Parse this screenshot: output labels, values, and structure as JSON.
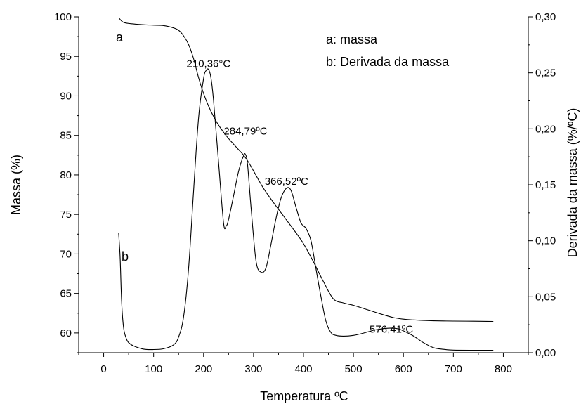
{
  "chart_data": {
    "type": "line",
    "xlabel": "Temperatura ºC",
    "ylabel_left": "Massa (%)",
    "ylabel_right": "Derivada da massa (%/ºC)",
    "xlim": [
      -50,
      850
    ],
    "ylim_left": [
      57.5,
      100
    ],
    "ylim_right": [
      0,
      0.3
    ],
    "x_ticks": [
      "0",
      "100",
      "200",
      "300",
      "400",
      "500",
      "600",
      "700",
      "800"
    ],
    "y_left_ticks": [
      "60",
      "65",
      "70",
      "75",
      "80",
      "85",
      "90",
      "95",
      "100"
    ],
    "y_right_ticks": [
      "0,00",
      "0,05",
      "0,10",
      "0,15",
      "0,20",
      "0,25",
      "0,30"
    ],
    "legend": [
      "a: massa",
      "b: Derivada da massa"
    ],
    "curve_labels": {
      "a": "a",
      "b": "b"
    },
    "annotations": [
      {
        "text": "210,36°C",
        "x": 210,
        "y_right": 0.255
      },
      {
        "text": "284,79ºC",
        "x": 284,
        "y_right": 0.195
      },
      {
        "text": "366,52ºC",
        "x": 366,
        "y_right": 0.15
      },
      {
        "text": "576,41ºC",
        "x": 576,
        "y_right": 0.018
      }
    ],
    "series": [
      {
        "name": "a: massa",
        "axis": "left",
        "x": [
          30,
          40,
          60,
          80,
          100,
          120,
          140,
          150,
          160,
          170,
          180,
          190,
          200,
          210,
          220,
          230,
          240,
          250,
          260,
          270,
          280,
          290,
          300,
          320,
          340,
          360,
          380,
          400,
          420,
          440,
          460,
          480,
          500,
          520,
          540,
          560,
          580,
          600,
          620,
          640,
          660,
          680,
          700,
          740,
          780
        ],
        "y": [
          99.9,
          99.3,
          99.1,
          99.0,
          98.95,
          98.9,
          98.6,
          98.3,
          97.6,
          96.5,
          94.7,
          92.3,
          90.3,
          88.7,
          87.4,
          86.3,
          85.4,
          84.6,
          83.9,
          83.2,
          82.5,
          81.6,
          80.5,
          78.3,
          76.5,
          74.8,
          73.1,
          71.3,
          69.0,
          66.5,
          64.3,
          63.8,
          63.5,
          63.1,
          62.7,
          62.3,
          61.95,
          61.75,
          61.65,
          61.58,
          61.54,
          61.52,
          61.5,
          61.48,
          61.45
        ]
      },
      {
        "name": "b: Derivada da massa",
        "axis": "right",
        "x": [
          30,
          33,
          36,
          40,
          45,
          50,
          60,
          80,
          100,
          120,
          140,
          150,
          160,
          170,
          180,
          190,
          200,
          205,
          210,
          215,
          220,
          230,
          240,
          245,
          250,
          260,
          270,
          280,
          284,
          288,
          295,
          305,
          315,
          325,
          335,
          345,
          355,
          366,
          375,
          385,
          395,
          405,
          415,
          425,
          435,
          445,
          455,
          465,
          480,
          500,
          520,
          540,
          560,
          576,
          590,
          600,
          620,
          640,
          660,
          680,
          700,
          740,
          780
        ],
        "y": [
          0.107,
          0.085,
          0.045,
          0.022,
          0.013,
          0.009,
          0.006,
          0.0032,
          0.0028,
          0.0035,
          0.007,
          0.014,
          0.032,
          0.075,
          0.145,
          0.21,
          0.245,
          0.252,
          0.253,
          0.245,
          0.225,
          0.17,
          0.116,
          0.113,
          0.119,
          0.14,
          0.162,
          0.176,
          0.177,
          0.168,
          0.13,
          0.082,
          0.072,
          0.076,
          0.097,
          0.12,
          0.138,
          0.147,
          0.145,
          0.13,
          0.116,
          0.111,
          0.1,
          0.075,
          0.05,
          0.028,
          0.018,
          0.0155,
          0.0148,
          0.0155,
          0.0175,
          0.02,
          0.0215,
          0.022,
          0.0213,
          0.0195,
          0.015,
          0.009,
          0.0045,
          0.003,
          0.0023,
          0.0022,
          0.0022
        ]
      }
    ]
  }
}
